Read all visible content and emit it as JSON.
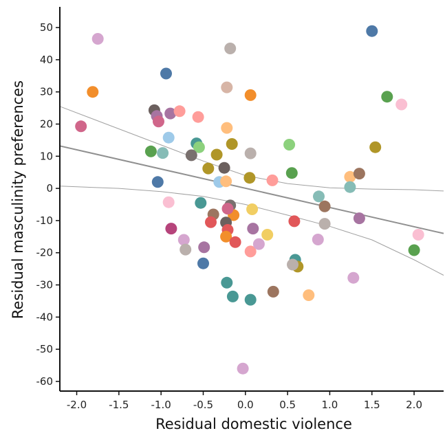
{
  "chart_data": {
    "type": "scatter",
    "title": "",
    "xlabel": "Residual domestic violence",
    "ylabel": "Residual masculinity preferences",
    "xlim": [
      -2.2,
      2.35
    ],
    "ylim": [
      -63,
      56
    ],
    "xticks": [
      -2.0,
      -1.5,
      -1.0,
      -0.5,
      0.0,
      0.5,
      1.0,
      1.5,
      2.0
    ],
    "xtick_labels": [
      "-2.0",
      "-1.5",
      "-1.0",
      "-0.5",
      "0.0",
      "0.5",
      "1.0",
      "1.5",
      "2.0"
    ],
    "yticks": [
      50,
      40,
      30,
      20,
      10,
      0,
      -10,
      -20,
      -30,
      -40,
      -50,
      -60
    ],
    "ytick_labels": [
      "50",
      "40",
      "30",
      "20",
      "10",
      "0",
      "-10",
      "-20",
      "-30",
      "-40",
      "-50",
      "-60"
    ],
    "grid": false,
    "regression": {
      "fit": {
        "x": [
          -2.2,
          2.35
        ],
        "y": [
          13.2,
          -14.0
        ],
        "color": "#909090"
      },
      "ci_upper": {
        "x": [
          -2.2,
          -1.5,
          -1.0,
          -0.5,
          0.0,
          0.5,
          1.0,
          1.5,
          2.0,
          2.35
        ],
        "y": [
          25.5,
          18.5,
          13.5,
          8.5,
          4.0,
          1.5,
          0.2,
          -0.2,
          -0.4,
          -0.8
        ]
      },
      "ci_lower": {
        "x": [
          -2.2,
          -1.5,
          -1.0,
          -0.5,
          0.0,
          0.5,
          1.0,
          1.5,
          2.0,
          2.35
        ],
        "y": [
          0.7,
          0.0,
          -1.0,
          -2.5,
          -5.0,
          -8.3,
          -11.8,
          -16.0,
          -22.2,
          -27.0
        ]
      },
      "ci_color": "#a0a0a0"
    },
    "points": [
      {
        "x": -1.75,
        "y": 46.5,
        "color": "#d5a6cf"
      },
      {
        "x": -1.81,
        "y": 30.0,
        "color": "#f28e2b"
      },
      {
        "x": -1.95,
        "y": 19.3,
        "color": "#d0668a"
      },
      {
        "x": -0.94,
        "y": 35.7,
        "color": "#4e79a7"
      },
      {
        "x": -1.08,
        "y": 24.3,
        "color": "#6b605e"
      },
      {
        "x": -1.05,
        "y": 22.5,
        "color": "#a774a1"
      },
      {
        "x": -1.03,
        "y": 20.8,
        "color": "#d0668a"
      },
      {
        "x": -0.89,
        "y": 23.3,
        "color": "#a774a1"
      },
      {
        "x": -0.78,
        "y": 24.0,
        "color": "#ff9d9a"
      },
      {
        "x": -0.56,
        "y": 22.2,
        "color": "#ff9d9a"
      },
      {
        "x": -0.91,
        "y": 15.8,
        "color": "#9ecae9"
      },
      {
        "x": -1.12,
        "y": 11.5,
        "color": "#59a14f"
      },
      {
        "x": -0.98,
        "y": 11.0,
        "color": "#86bcb6"
      },
      {
        "x": -0.58,
        "y": 14.0,
        "color": "#499894"
      },
      {
        "x": -0.55,
        "y": 12.8,
        "color": "#8cd17d"
      },
      {
        "x": -0.64,
        "y": 10.3,
        "color": "#79706e"
      },
      {
        "x": -1.04,
        "y": 2.0,
        "color": "#4e79a7"
      },
      {
        "x": -0.91,
        "y": -4.3,
        "color": "#fabfd2"
      },
      {
        "x": -0.53,
        "y": -4.5,
        "color": "#499894"
      },
      {
        "x": -0.88,
        "y": -12.5,
        "color": "#b6447b"
      },
      {
        "x": -0.73,
        "y": -16.0,
        "color": "#d5a6cf"
      },
      {
        "x": -0.71,
        "y": -19.0,
        "color": "#bab0ac"
      },
      {
        "x": -0.49,
        "y": -18.3,
        "color": "#a774a1"
      },
      {
        "x": -0.5,
        "y": -23.3,
        "color": "#4e79a7"
      },
      {
        "x": -0.18,
        "y": 43.5,
        "color": "#bab0ac"
      },
      {
        "x": -0.22,
        "y": 31.4,
        "color": "#d7b5a6"
      },
      {
        "x": 0.06,
        "y": 29.0,
        "color": "#f28e2b"
      },
      {
        "x": -0.22,
        "y": 18.8,
        "color": "#ffbe7d"
      },
      {
        "x": -0.16,
        "y": 13.8,
        "color": "#b09628"
      },
      {
        "x": 0.06,
        "y": 10.9,
        "color": "#bab0ac"
      },
      {
        "x": -0.34,
        "y": 10.5,
        "color": "#b09628"
      },
      {
        "x": -0.44,
        "y": 6.2,
        "color": "#b09628"
      },
      {
        "x": -0.25,
        "y": 6.4,
        "color": "#6b605e"
      },
      {
        "x": -0.31,
        "y": 2.0,
        "color": "#9ecae9"
      },
      {
        "x": -0.23,
        "y": 2.2,
        "color": "#ffbe7d"
      },
      {
        "x": 0.05,
        "y": 3.3,
        "color": "#b09628"
      },
      {
        "x": 0.32,
        "y": 2.5,
        "color": "#ff9d9a"
      },
      {
        "x": -0.18,
        "y": -5.3,
        "color": "#79706e"
      },
      {
        "x": -0.38,
        "y": -8.1,
        "color": "#9c755f"
      },
      {
        "x": -0.14,
        "y": -8.3,
        "color": "#f28e2b"
      },
      {
        "x": 0.08,
        "y": -6.5,
        "color": "#f1ce63"
      },
      {
        "x": -0.41,
        "y": -10.5,
        "color": "#e15759"
      },
      {
        "x": -0.23,
        "y": -10.6,
        "color": "#6b605e"
      },
      {
        "x": -0.21,
        "y": -6.3,
        "color": "#d0668a"
      },
      {
        "x": -0.21,
        "y": -12.9,
        "color": "#e15759"
      },
      {
        "x": -0.23,
        "y": -15.0,
        "color": "#f28e2b"
      },
      {
        "x": -0.12,
        "y": -16.7,
        "color": "#e15759"
      },
      {
        "x": 0.09,
        "y": -12.5,
        "color": "#a774a1"
      },
      {
        "x": 0.06,
        "y": -19.6,
        "color": "#ff9d9a"
      },
      {
        "x": 0.16,
        "y": -17.3,
        "color": "#d5a6cf"
      },
      {
        "x": 0.26,
        "y": -14.4,
        "color": "#f1ce63"
      },
      {
        "x": -0.22,
        "y": -29.3,
        "color": "#499894"
      },
      {
        "x": -0.15,
        "y": -33.6,
        "color": "#499894"
      },
      {
        "x": 0.06,
        "y": -34.6,
        "color": "#499894"
      },
      {
        "x": -0.03,
        "y": -56.0,
        "color": "#d5a6cf"
      },
      {
        "x": 0.33,
        "y": -32.1,
        "color": "#9c755f"
      },
      {
        "x": 0.52,
        "y": 13.6,
        "color": "#8cd17d"
      },
      {
        "x": 0.55,
        "y": 4.8,
        "color": "#59a14f"
      },
      {
        "x": 0.58,
        "y": -10.2,
        "color": "#e15759"
      },
      {
        "x": 0.59,
        "y": -22.2,
        "color": "#499894"
      },
      {
        "x": 0.62,
        "y": -24.3,
        "color": "#b09628"
      },
      {
        "x": 0.56,
        "y": -23.7,
        "color": "#bab0ac"
      },
      {
        "x": 0.75,
        "y": -33.2,
        "color": "#ffbe7d"
      },
      {
        "x": 0.87,
        "y": -2.5,
        "color": "#86bcb6"
      },
      {
        "x": 0.94,
        "y": -5.6,
        "color": "#9c755f"
      },
      {
        "x": 0.94,
        "y": -11.0,
        "color": "#bab0ac"
      },
      {
        "x": 0.86,
        "y": -15.9,
        "color": "#d5a6cf"
      },
      {
        "x": 1.24,
        "y": 3.6,
        "color": "#ffbe7d"
      },
      {
        "x": 1.24,
        "y": 0.4,
        "color": "#86bcb6"
      },
      {
        "x": 1.35,
        "y": 4.6,
        "color": "#9c755f"
      },
      {
        "x": 1.35,
        "y": -9.3,
        "color": "#a774a1"
      },
      {
        "x": 1.28,
        "y": -27.8,
        "color": "#d5a6cf"
      },
      {
        "x": 1.5,
        "y": 48.9,
        "color": "#4e79a7"
      },
      {
        "x": 1.54,
        "y": 12.8,
        "color": "#b09628"
      },
      {
        "x": 1.68,
        "y": 28.5,
        "color": "#59a14f"
      },
      {
        "x": 1.85,
        "y": 26.1,
        "color": "#fabfd2"
      },
      {
        "x": 2.05,
        "y": -14.4,
        "color": "#fabfd2"
      },
      {
        "x": 2.0,
        "y": -19.2,
        "color": "#59a14f"
      }
    ]
  }
}
